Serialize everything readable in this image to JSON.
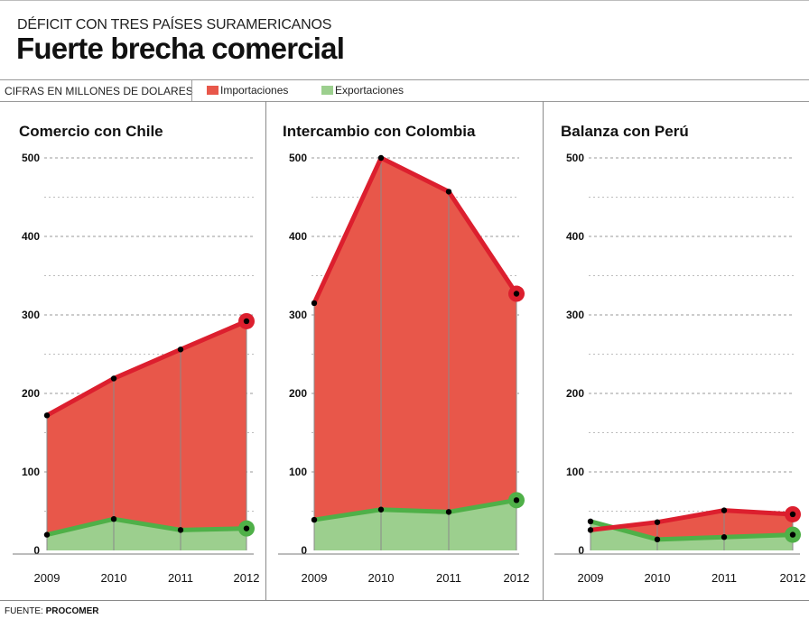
{
  "header": {
    "kicker": "DÉFICIT CON TRES PAÍSES SURAMERICANOS",
    "title": "Fuerte brecha comercial"
  },
  "legend": {
    "units": "CIFRAS EN MILLONES DE DOLARES",
    "import_label": "Importaciones",
    "export_label": "Exportaciones"
  },
  "colors": {
    "import_fill": "#e8574a",
    "import_line": "#dc1f2e",
    "export_fill": "#9ccf8e",
    "export_line": "#4fb048"
  },
  "source": {
    "label": "FUENTE:",
    "name": "PROCOMER"
  },
  "chart_data": [
    {
      "type": "area",
      "title": "Comercio con Chile",
      "categories": [
        "2009",
        "2010",
        "2011",
        "2012"
      ],
      "ylim": [
        0,
        500
      ],
      "yticks": [
        0,
        100,
        200,
        300,
        400,
        500
      ],
      "series": [
        {
          "name": "Importaciones",
          "values": [
            172,
            219,
            256,
            292
          ]
        },
        {
          "name": "Exportaciones",
          "values": [
            20,
            40,
            26,
            28
          ]
        }
      ]
    },
    {
      "type": "area",
      "title": "Intercambio con Colombia",
      "categories": [
        "2009",
        "2010",
        "2011",
        "2012"
      ],
      "ylim": [
        0,
        500
      ],
      "yticks": [
        0,
        100,
        200,
        300,
        400,
        500
      ],
      "series": [
        {
          "name": "Importaciones",
          "values": [
            315,
            500,
            457,
            327
          ]
        },
        {
          "name": "Exportaciones",
          "values": [
            39,
            52,
            49,
            64
          ]
        }
      ]
    },
    {
      "type": "area",
      "title": "Balanza con Perú",
      "categories": [
        "2009",
        "2010",
        "2011",
        "2012"
      ],
      "ylim": [
        0,
        500
      ],
      "yticks": [
        0,
        100,
        200,
        300,
        400,
        500
      ],
      "series": [
        {
          "name": "Importaciones",
          "values": [
            26,
            36,
            51,
            46
          ]
        },
        {
          "name": "Exportaciones",
          "values": [
            37,
            14,
            17,
            20
          ]
        }
      ]
    }
  ]
}
